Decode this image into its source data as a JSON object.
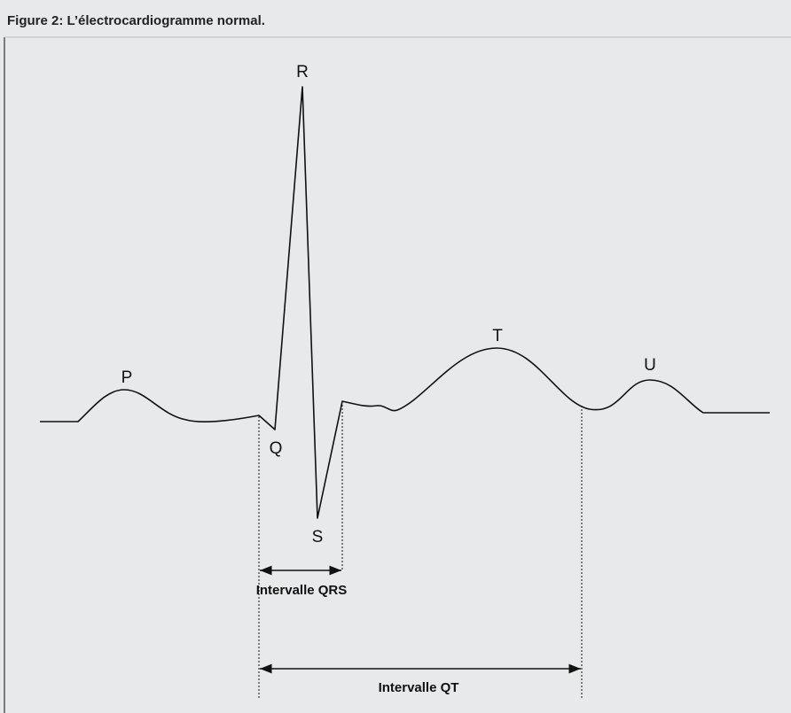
{
  "title": "Figure 2: L’électrocardiogramme normal.",
  "waves": [
    {
      "label": "P"
    },
    {
      "label": "Q"
    },
    {
      "label": "R"
    },
    {
      "label": "S"
    },
    {
      "label": "T"
    },
    {
      "label": "U"
    }
  ],
  "intervals": [
    {
      "label": "Intervalle QRS"
    },
    {
      "label": "Intervalle QT"
    }
  ]
}
